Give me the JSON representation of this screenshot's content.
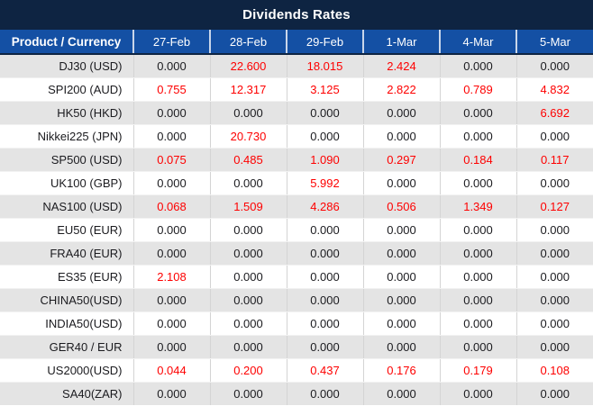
{
  "title": "Dividends Rates",
  "colors": {
    "title_bg": "#0e2442",
    "header_bg": "#1450a4",
    "row_alt": "#e4e4e4",
    "text": "#1b1b1f",
    "red": "#fe0000"
  },
  "chart_data": {
    "type": "table",
    "title": "Dividends Rates",
    "product_header": "Product / Currency",
    "date_headers": [
      "27-Feb",
      "28-Feb",
      "29-Feb",
      "1-Mar",
      "4-Mar",
      "5-Mar"
    ],
    "value_color_rule": "non-zero values rendered in red, zero values in black",
    "rows": [
      {
        "product": "DJ30 (USD)",
        "values": [
          "0.000",
          "22.600",
          "18.015",
          "2.424",
          "0.000",
          "0.000"
        ]
      },
      {
        "product": "SPI200 (AUD)",
        "values": [
          "0.755",
          "12.317",
          "3.125",
          "2.822",
          "0.789",
          "4.832"
        ]
      },
      {
        "product": "HK50 (HKD)",
        "values": [
          "0.000",
          "0.000",
          "0.000",
          "0.000",
          "0.000",
          "6.692"
        ]
      },
      {
        "product": "Nikkei225 (JPN)",
        "values": [
          "0.000",
          "20.730",
          "0.000",
          "0.000",
          "0.000",
          "0.000"
        ]
      },
      {
        "product": "SP500 (USD)",
        "values": [
          "0.075",
          "0.485",
          "1.090",
          "0.297",
          "0.184",
          "0.117"
        ]
      },
      {
        "product": "UK100 (GBP)",
        "values": [
          "0.000",
          "0.000",
          "5.992",
          "0.000",
          "0.000",
          "0.000"
        ]
      },
      {
        "product": "NAS100 (USD)",
        "values": [
          "0.068",
          "1.509",
          "4.286",
          "0.506",
          "1.349",
          "0.127"
        ]
      },
      {
        "product": "EU50 (EUR)",
        "values": [
          "0.000",
          "0.000",
          "0.000",
          "0.000",
          "0.000",
          "0.000"
        ]
      },
      {
        "product": "FRA40 (EUR)",
        "values": [
          "0.000",
          "0.000",
          "0.000",
          "0.000",
          "0.000",
          "0.000"
        ]
      },
      {
        "product": "ES35 (EUR)",
        "values": [
          "2.108",
          "0.000",
          "0.000",
          "0.000",
          "0.000",
          "0.000"
        ]
      },
      {
        "product": "CHINA50(USD)",
        "values": [
          "0.000",
          "0.000",
          "0.000",
          "0.000",
          "0.000",
          "0.000"
        ]
      },
      {
        "product": "INDIA50(USD)",
        "values": [
          "0.000",
          "0.000",
          "0.000",
          "0.000",
          "0.000",
          "0.000"
        ]
      },
      {
        "product": "GER40 / EUR",
        "values": [
          "0.000",
          "0.000",
          "0.000",
          "0.000",
          "0.000",
          "0.000"
        ]
      },
      {
        "product": "US2000(USD)",
        "values": [
          "0.044",
          "0.200",
          "0.437",
          "0.176",
          "0.179",
          "0.108"
        ]
      },
      {
        "product": "SA40(ZAR)",
        "values": [
          "0.000",
          "0.000",
          "0.000",
          "0.000",
          "0.000",
          "0.000"
        ]
      }
    ]
  }
}
